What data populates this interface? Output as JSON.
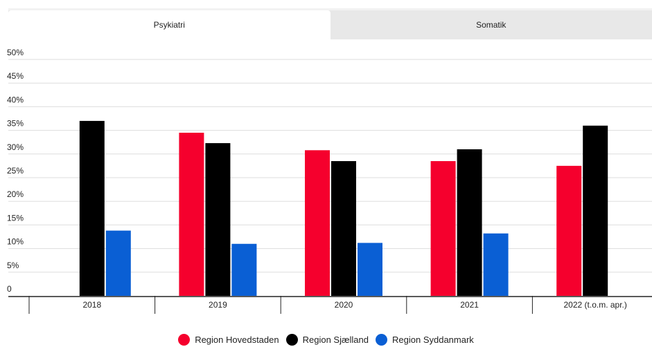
{
  "tabs": [
    {
      "label": "Psykiatri",
      "active": true
    },
    {
      "label": "Somatik",
      "active": false
    }
  ],
  "chart_data": {
    "type": "bar",
    "title": "",
    "xlabel": "",
    "ylabel": "",
    "categories": [
      "2018",
      "2019",
      "2020",
      "2021",
      "2022 (t.o.m. apr.)"
    ],
    "y_ticks": [
      "0",
      "5%",
      "10%",
      "15%",
      "20%",
      "25%",
      "30%",
      "35%",
      "40%",
      "45%",
      "50%"
    ],
    "ylim": [
      0,
      50
    ],
    "grid": true,
    "legend_position": "bottom",
    "series": [
      {
        "name": "Region Hovedstaden",
        "color": "#f5002d",
        "values": [
          null,
          34.5,
          30.8,
          28.5,
          27.5
        ]
      },
      {
        "name": "Region Sjælland",
        "color": "#000000",
        "values": [
          37.0,
          32.3,
          28.5,
          31.0,
          36.0
        ]
      },
      {
        "name": "Region Syddanmark",
        "color": "#0a5fd4",
        "values": [
          13.8,
          11.0,
          11.2,
          13.2,
          null
        ]
      }
    ]
  }
}
